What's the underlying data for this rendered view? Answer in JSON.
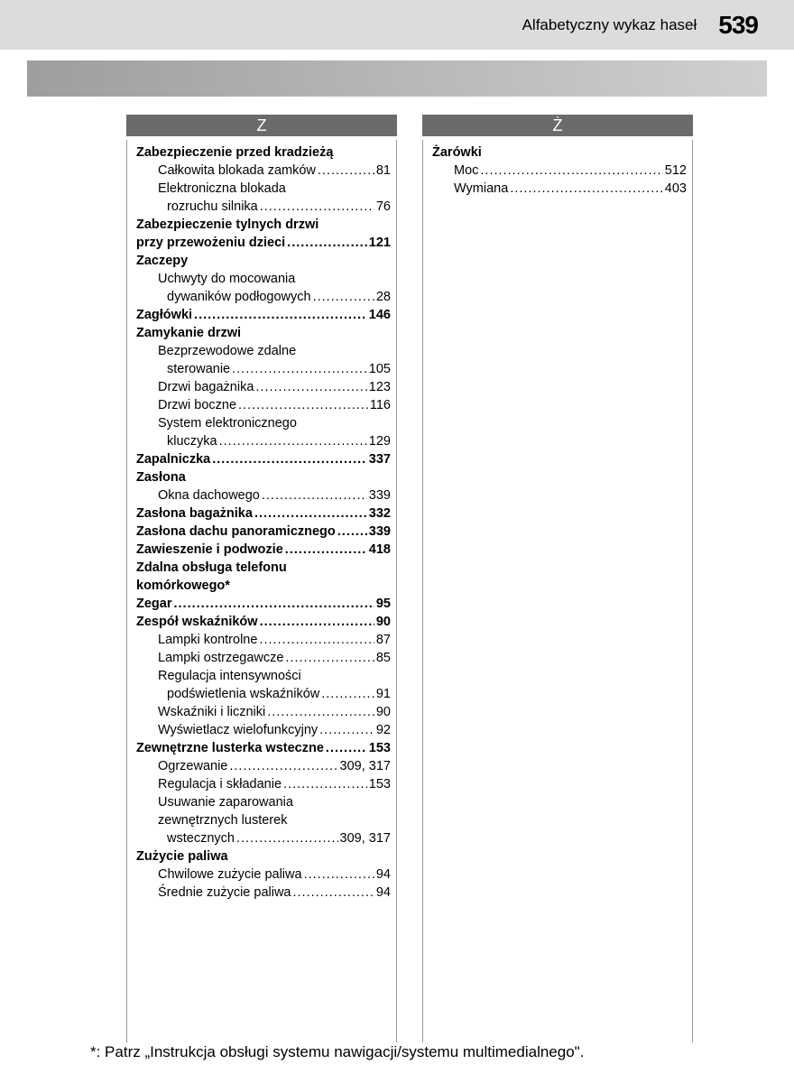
{
  "header": {
    "title": "Alfabetyczny wykaz haseł",
    "page": "539"
  },
  "colors": {
    "header_bg": "#dcdcdc",
    "subbar_from": "#9e9e9e",
    "subbar_to": "#d0d0d0",
    "letter_bg": "#6b6b6b",
    "border": "#999999"
  },
  "left": {
    "letter": "Z",
    "items": [
      {
        "t": "main",
        "label": "Zabezpieczenie przed kradzieżą"
      },
      {
        "t": "sub",
        "label": "Całkowita blokada zamków",
        "pg": "81"
      },
      {
        "t": "sub",
        "label": "Elektroniczna blokada"
      },
      {
        "t": "cont",
        "label": "rozruchu silnika",
        "pg": "76"
      },
      {
        "t": "main",
        "label": "Zabezpieczenie tylnych drzwi"
      },
      {
        "t": "main",
        "label": " przy przewożeniu dzieci",
        "pg": "121"
      },
      {
        "t": "main",
        "label": "Zaczepy"
      },
      {
        "t": "sub",
        "label": "Uchwyty do mocowania"
      },
      {
        "t": "cont",
        "label": "dywaników podłogowych",
        "pg": "28"
      },
      {
        "t": "main",
        "label": "Zagłówki",
        "pg": "146"
      },
      {
        "t": "main",
        "label": "Zamykanie drzwi"
      },
      {
        "t": "sub",
        "label": "Bezprzewodowe zdalne"
      },
      {
        "t": "cont",
        "label": "sterowanie",
        "pg": "105"
      },
      {
        "t": "sub",
        "label": "Drzwi bagażnika",
        "pg": "123"
      },
      {
        "t": "sub",
        "label": "Drzwi boczne",
        "pg": "116"
      },
      {
        "t": "sub",
        "label": "System elektronicznego"
      },
      {
        "t": "cont",
        "label": "kluczyka",
        "pg": "129"
      },
      {
        "t": "main",
        "label": "Zapalniczka",
        "pg": "337"
      },
      {
        "t": "main",
        "label": "Zasłona"
      },
      {
        "t": "sub",
        "label": "Okna dachowego",
        "pg": "339"
      },
      {
        "t": "main",
        "label": "Zasłona bagażnika",
        "pg": "332"
      },
      {
        "t": "main",
        "label": "Zasłona dachu panoramicznego",
        "pg": "339"
      },
      {
        "t": "main",
        "label": "Zawieszenie i podwozie",
        "pg": "418"
      },
      {
        "t": "main",
        "label": "Zdalna obsługa telefonu"
      },
      {
        "t": "main",
        "label": " komórkowego*"
      },
      {
        "t": "main",
        "label": "Zegar",
        "pg": "95"
      },
      {
        "t": "main",
        "label": "Zespół wskaźników",
        "pg": "90"
      },
      {
        "t": "sub",
        "label": "Lampki kontrolne",
        "pg": "87"
      },
      {
        "t": "sub",
        "label": "Lampki ostrzegawcze",
        "pg": "85"
      },
      {
        "t": "sub",
        "label": "Regulacja intensywności"
      },
      {
        "t": "cont",
        "label": "podświetlenia wskaźników",
        "pg": "91"
      },
      {
        "t": "sub",
        "label": "Wskaźniki i liczniki",
        "pg": "90"
      },
      {
        "t": "sub",
        "label": "Wyświetlacz wielofunkcyjny",
        "pg": "92"
      },
      {
        "t": "main",
        "label": "Zewnętrzne lusterka wsteczne",
        "pg": "153"
      },
      {
        "t": "sub",
        "label": "Ogrzewanie",
        "pg": "309, 317"
      },
      {
        "t": "sub",
        "label": "Regulacja i składanie",
        "pg": "153"
      },
      {
        "t": "sub",
        "label": "Usuwanie zaparowania"
      },
      {
        "t": "sub",
        "label": "zewnętrznych lusterek"
      },
      {
        "t": "cont",
        "label": "wstecznych",
        "pg": "309, 317"
      },
      {
        "t": "main",
        "label": "Zużycie paliwa"
      },
      {
        "t": "sub",
        "label": "Chwilowe zużycie paliwa",
        "pg": "94"
      },
      {
        "t": "sub",
        "label": "Średnie zużycie paliwa",
        "pg": "94"
      }
    ]
  },
  "right": {
    "letter": "Ż",
    "items": [
      {
        "t": "main",
        "label": "Żarówki"
      },
      {
        "t": "sub",
        "label": "Moc",
        "pg": "512"
      },
      {
        "t": "sub",
        "label": "Wymiana",
        "pg": "403"
      }
    ]
  },
  "footnote": "*: Patrz „Instrukcja obsługi systemu nawigacji/systemu multimedialnego\"."
}
